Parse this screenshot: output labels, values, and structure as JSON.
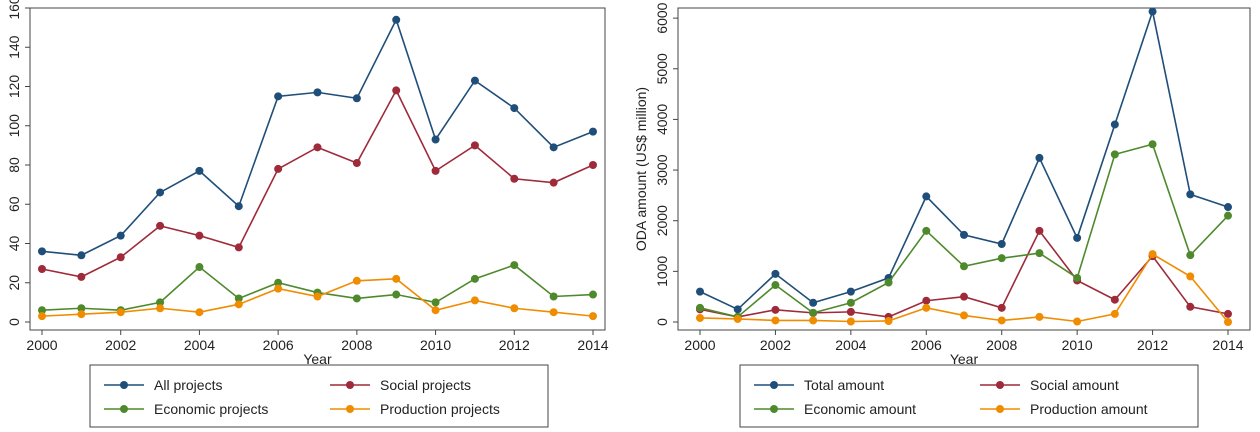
{
  "colors": {
    "blue": "#1f4e79",
    "red": "#9e2a3a",
    "green": "#4e8a2c",
    "orange": "#f08c00"
  },
  "chart_data": [
    {
      "type": "line",
      "title": "",
      "xlabel": "Year",
      "ylabel": "",
      "x": [
        2000,
        2001,
        2002,
        2003,
        2004,
        2005,
        2006,
        2007,
        2008,
        2009,
        2010,
        2011,
        2012,
        2013,
        2014
      ],
      "xticks": [
        2000,
        2002,
        2004,
        2006,
        2008,
        2010,
        2012,
        2014
      ],
      "xlim": [
        2000,
        2014
      ],
      "yticks": [
        0,
        20,
        40,
        60,
        80,
        100,
        120,
        140,
        160
      ],
      "ylim": [
        0,
        160
      ],
      "grid": false,
      "legend": "bottom",
      "series": [
        {
          "name": "All projects",
          "color": "#1f4e79",
          "values": [
            36,
            34,
            44,
            66,
            77,
            59,
            115,
            117,
            114,
            154,
            93,
            123,
            109,
            89,
            97
          ]
        },
        {
          "name": "Social projects",
          "color": "#9e2a3a",
          "values": [
            27,
            23,
            33,
            49,
            44,
            38,
            78,
            89,
            81,
            118,
            77,
            90,
            73,
            71,
            80
          ]
        },
        {
          "name": "Economic projects",
          "color": "#4e8a2c",
          "values": [
            6,
            7,
            6,
            10,
            28,
            12,
            20,
            15,
            12,
            14,
            10,
            22,
            29,
            13,
            14
          ]
        },
        {
          "name": "Production projects",
          "color": "#f08c00",
          "values": [
            3,
            4,
            5,
            7,
            5,
            9,
            17,
            13,
            21,
            22,
            6,
            11,
            7,
            5,
            3
          ]
        }
      ]
    },
    {
      "type": "line",
      "title": "",
      "xlabel": "Year",
      "ylabel": "ODA amount (US$ million)",
      "x": [
        2000,
        2001,
        2002,
        2003,
        2004,
        2005,
        2006,
        2007,
        2008,
        2009,
        2010,
        2011,
        2012,
        2013,
        2014
      ],
      "xticks": [
        2000,
        2002,
        2004,
        2006,
        2008,
        2010,
        2012,
        2014
      ],
      "xlim": [
        2000,
        2014
      ],
      "yticks": [
        0,
        1000,
        2000,
        3000,
        4000,
        5000,
        6000
      ],
      "ylim": [
        0,
        6200
      ],
      "grid": false,
      "legend": "bottom",
      "series": [
        {
          "name": "Total amount",
          "color": "#1f4e79",
          "values": [
            600,
            250,
            950,
            380,
            600,
            870,
            2480,
            1720,
            1540,
            3240,
            1660,
            3900,
            6130,
            2520,
            2270
          ]
        },
        {
          "name": "Social amount",
          "color": "#9e2a3a",
          "values": [
            250,
            100,
            240,
            180,
            200,
            100,
            420,
            500,
            280,
            1800,
            820,
            440,
            1300,
            300,
            160
          ]
        },
        {
          "name": "Economic amount",
          "color": "#4e8a2c",
          "values": [
            280,
            100,
            730,
            180,
            380,
            780,
            1800,
            1100,
            1260,
            1360,
            870,
            3310,
            3510,
            1320,
            2100
          ]
        },
        {
          "name": "Production amount",
          "color": "#f08c00",
          "values": [
            80,
            60,
            30,
            30,
            10,
            20,
            280,
            130,
            30,
            100,
            10,
            160,
            1340,
            900,
            0
          ]
        }
      ]
    }
  ]
}
